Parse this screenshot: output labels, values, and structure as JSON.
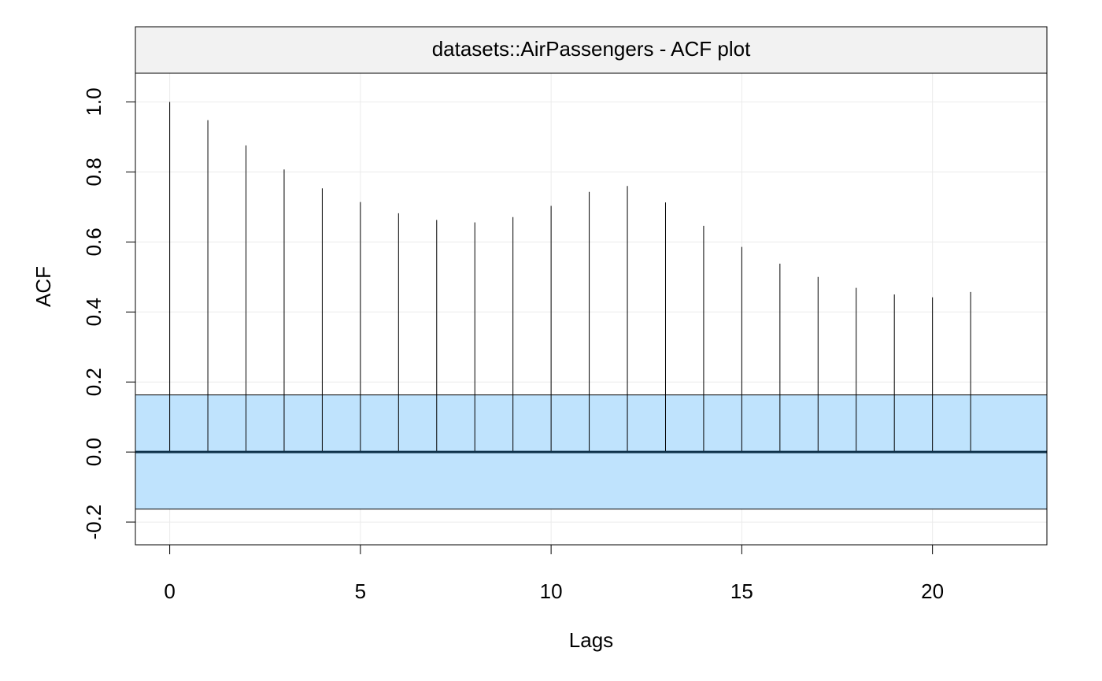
{
  "chart_data": {
    "type": "bar",
    "title": "datasets::AirPassengers - ACF plot",
    "xlabel": "Lags",
    "ylabel": "ACF",
    "lags": [
      0,
      1,
      2,
      3,
      4,
      5,
      6,
      7,
      8,
      9,
      10,
      11,
      12,
      13,
      14,
      15,
      16,
      17,
      18,
      19,
      20,
      21
    ],
    "values": [
      1.0,
      0.948,
      0.876,
      0.807,
      0.753,
      0.714,
      0.682,
      0.663,
      0.656,
      0.671,
      0.703,
      0.743,
      0.76,
      0.713,
      0.646,
      0.586,
      0.538,
      0.5,
      0.469,
      0.45,
      0.442,
      0.457
    ],
    "confidence_band": 0.163,
    "xlim": [
      -0.9,
      23.0
    ],
    "ylim": [
      -0.265,
      1.082
    ],
    "x_ticks": [
      0,
      5,
      10,
      15,
      20
    ],
    "y_ticks": [
      -0.2,
      0.0,
      0.2,
      0.4,
      0.6,
      0.8,
      1.0
    ],
    "y_tick_labels": [
      "-0.2",
      "0.0",
      "0.2",
      "0.4",
      "0.6",
      "0.8",
      "1.0"
    ],
    "grid": true,
    "colors": {
      "band_fill": "#bfe3fd",
      "zero_line": "#0d3149",
      "strip_fill": "#f2f2f2",
      "grid": "#ebebeb",
      "bars": "#000000"
    }
  }
}
